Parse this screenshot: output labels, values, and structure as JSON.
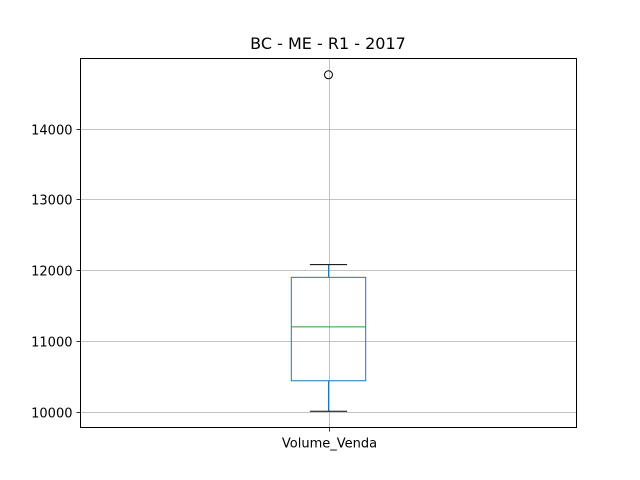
{
  "chart_data": {
    "type": "box",
    "title": "BC - ME - R1 - 2017",
    "xlabel": "",
    "ylabel": "",
    "categories": [
      "Volume_Venda"
    ],
    "ylim": [
      9780,
      14990
    ],
    "yticks": [
      10000,
      11000,
      12000,
      13000,
      14000
    ],
    "grid": true,
    "series": [
      {
        "whisker_low": 10010,
        "q1": 10440,
        "median": 11200,
        "q3": 11900,
        "whisker_high": 12080,
        "outliers": [
          14760
        ]
      }
    ]
  },
  "colors": {
    "box": "#1f77b4",
    "median": "#2ca02c",
    "whisker": "#1f77b4",
    "cap": "#000000",
    "grid": "#b0b0b0",
    "frame": "#000000"
  }
}
